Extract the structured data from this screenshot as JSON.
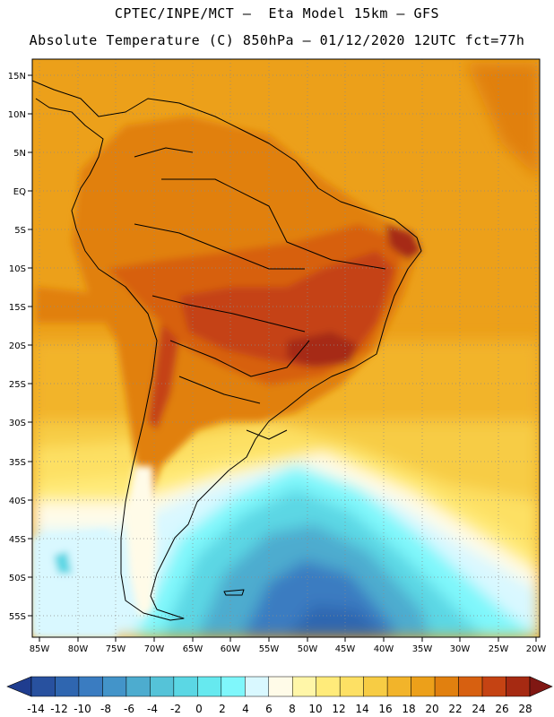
{
  "header": {
    "line1": "CPTEC/INPE/MCT –  Eta Model 15km – GFS",
    "line2": "Absolute Temperature (C) 850hPa – 01/12/2020 12UTC fct=77h"
  },
  "map": {
    "lat_labels": [
      "15N",
      "10N",
      "5N",
      "EQ",
      "5S",
      "10S",
      "15S",
      "20S",
      "25S",
      "30S",
      "35S",
      "40S",
      "45S",
      "50S",
      "55S"
    ],
    "lon_labels": [
      "85W",
      "80W",
      "75W",
      "70W",
      "65W",
      "60W",
      "55W",
      "50W",
      "45W",
      "40W",
      "35W",
      "30W",
      "25W",
      "20W"
    ],
    "domain": {
      "lat_range": [
        18,
        -58
      ],
      "lon_range": [
        -86,
        -19
      ]
    }
  },
  "colorbar": {
    "ticks": [
      "-14",
      "-12",
      "-10",
      "-8",
      "-6",
      "-4",
      "-2",
      "0",
      "2",
      "4",
      "6",
      "8",
      "10",
      "12",
      "14",
      "16",
      "18",
      "20",
      "22",
      "24",
      "26",
      "28"
    ],
    "colors": [
      "#1f3d8f",
      "#28519f",
      "#2f66b0",
      "#3a7cc1",
      "#4394c9",
      "#4daccf",
      "#55c3d8",
      "#5bd7e4",
      "#66e9ef",
      "#7ff7fb",
      "#d9f8ff",
      "#fffbe8",
      "#fff6a8",
      "#ffeb7a",
      "#fde064",
      "#f7cc44",
      "#f2b42a",
      "#eca01a",
      "#e1800f",
      "#d76010",
      "#c54313",
      "#a62a12",
      "#801713"
    ]
  }
}
